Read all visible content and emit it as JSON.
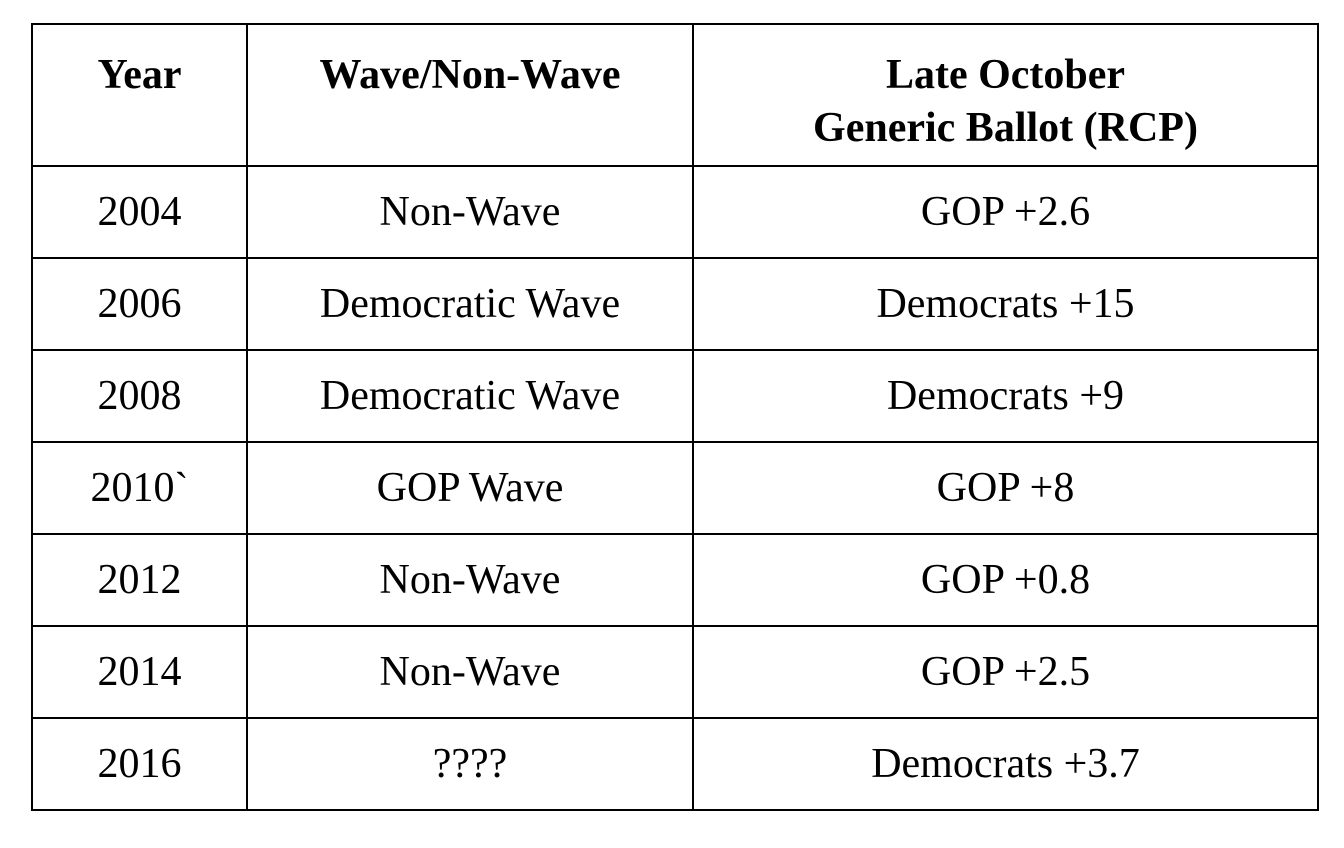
{
  "table": {
    "columns": [
      {
        "label": "Year"
      },
      {
        "label": "Wave/Non-Wave"
      },
      {
        "label_line1": "Late October",
        "label_line2": "Generic Ballot (RCP)"
      }
    ],
    "rows": [
      {
        "year": "2004",
        "wave": "Non-Wave",
        "ballot": "GOP +2.6"
      },
      {
        "year": "2006",
        "wave": "Democratic Wave",
        "ballot": "Democrats +15"
      },
      {
        "year": "2008",
        "wave": "Democratic Wave",
        "ballot": "Democrats +9"
      },
      {
        "year": "2010`",
        "wave": "GOP Wave",
        "ballot": "GOP +8"
      },
      {
        "year": "2012",
        "wave": "Non-Wave",
        "ballot": "GOP +0.8"
      },
      {
        "year": "2014",
        "wave": "Non-Wave",
        "ballot": "GOP +2.5"
      },
      {
        "year": "2016",
        "wave": "????",
        "ballot": "Democrats +3.7"
      }
    ]
  },
  "colors": {
    "background": "#ffffff",
    "text": "#000000",
    "border": "#000000"
  }
}
